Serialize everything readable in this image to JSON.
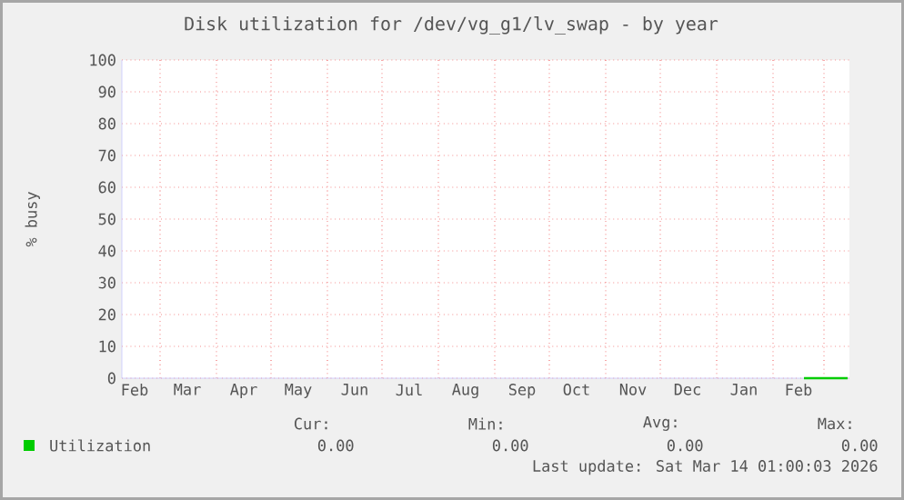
{
  "chart_data": {
    "type": "line",
    "title": "Disk utilization for /dev/vg_g1/lv_swap - by year",
    "ylabel": "% busy",
    "x": [
      "2026-02-18",
      "2026-03-14"
    ],
    "series": [
      {
        "name": "Utilization",
        "color": "#00cc00",
        "values": [
          0,
          0
        ]
      }
    ],
    "xlim": [
      "2025-02-08",
      "2026-03-15"
    ],
    "xticks": [
      {
        "value": "2025-02-15",
        "label": "Feb"
      },
      {
        "value": "2025-03-01",
        "label": null
      },
      {
        "value": "2025-03-16",
        "label": "Mar"
      },
      {
        "value": "2025-04-01",
        "label": null
      },
      {
        "value": "2025-04-16",
        "label": "Apr"
      },
      {
        "value": "2025-05-01",
        "label": null
      },
      {
        "value": "2025-05-16",
        "label": "May"
      },
      {
        "value": "2025-06-01",
        "label": null
      },
      {
        "value": "2025-06-16",
        "label": "Jun"
      },
      {
        "value": "2025-07-01",
        "label": null
      },
      {
        "value": "2025-07-16",
        "label": "Jul"
      },
      {
        "value": "2025-08-01",
        "label": null
      },
      {
        "value": "2025-08-16",
        "label": "Aug"
      },
      {
        "value": "2025-09-01",
        "label": null
      },
      {
        "value": "2025-09-16",
        "label": "Sep"
      },
      {
        "value": "2025-10-01",
        "label": null
      },
      {
        "value": "2025-10-16",
        "label": "Oct"
      },
      {
        "value": "2025-11-01",
        "label": null
      },
      {
        "value": "2025-11-16",
        "label": "Nov"
      },
      {
        "value": "2025-12-01",
        "label": null
      },
      {
        "value": "2025-12-16",
        "label": "Dec"
      },
      {
        "value": "2026-01-01",
        "label": null
      },
      {
        "value": "2026-01-16",
        "label": "Jan"
      },
      {
        "value": "2026-02-01",
        "label": null
      },
      {
        "value": "2026-02-15",
        "label": "Feb"
      },
      {
        "value": "2026-03-01",
        "label": null
      }
    ],
    "ylim": [
      0,
      100
    ],
    "yticks": [
      0,
      10,
      20,
      30,
      40,
      50,
      60,
      70,
      80,
      90,
      100
    ],
    "grid": true,
    "legend": "bottom left",
    "marker": "none",
    "line_style": "solid",
    "annotations": [
      "Cur:",
      "Min:",
      "Avg:",
      "Max:",
      "0.00",
      "0.00",
      "0.00",
      "0.00",
      "Last update: Sat Mar 14 01:00:03 2026"
    ]
  }
}
